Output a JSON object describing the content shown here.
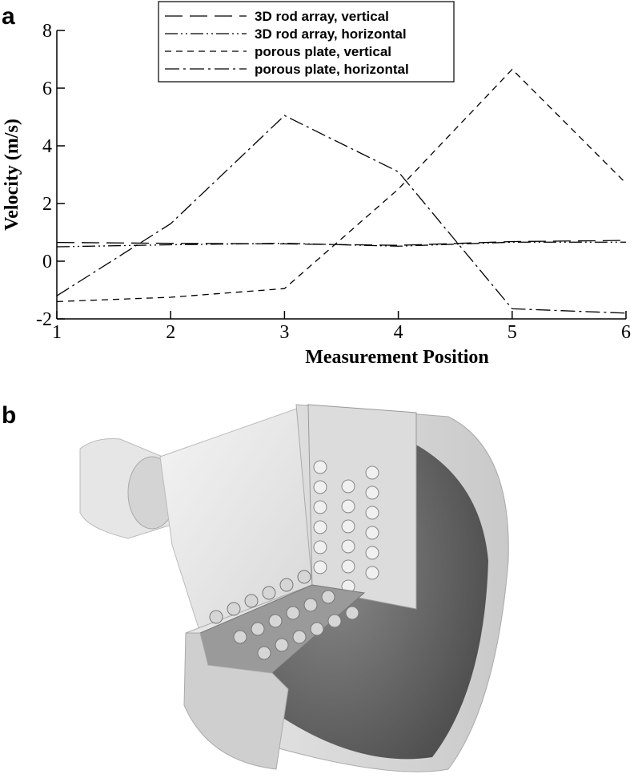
{
  "panel_labels": [
    "a",
    "b"
  ],
  "chart_data": {
    "type": "line",
    "xlabel": "Measurement Position",
    "ylabel": "Velocity (m/s)",
    "x": [
      1,
      2,
      3,
      4,
      5,
      6
    ],
    "xlim": [
      1,
      6
    ],
    "xticks": [
      1,
      2,
      3,
      4,
      5,
      6
    ],
    "ylim": [
      -2,
      8
    ],
    "yticks": [
      -2,
      0,
      2,
      4,
      6,
      8
    ],
    "grid": false,
    "legend": "top-center",
    "series": [
      {
        "name": "3D rod array, vertical",
        "color": "#000000",
        "dash": "22,9",
        "values": [
          0.65,
          0.62,
          0.6,
          0.55,
          0.68,
          0.72
        ]
      },
      {
        "name": "3D rod array, horizontal",
        "color": "#000000",
        "dash": "16,4,2,4,2,4",
        "values": [
          0.5,
          0.57,
          0.62,
          0.52,
          0.66,
          0.66
        ]
      },
      {
        "name": "porous plate, vertical",
        "color": "#000000",
        "dash": "8,6",
        "values": [
          -1.4,
          -1.25,
          -0.95,
          2.5,
          6.65,
          2.7
        ]
      },
      {
        "name": "porous plate, horizontal",
        "color": "#000000",
        "dash": "18,5,3,5",
        "values": [
          -1.2,
          1.3,
          5.05,
          3.1,
          -1.65,
          -1.8
        ]
      }
    ]
  }
}
